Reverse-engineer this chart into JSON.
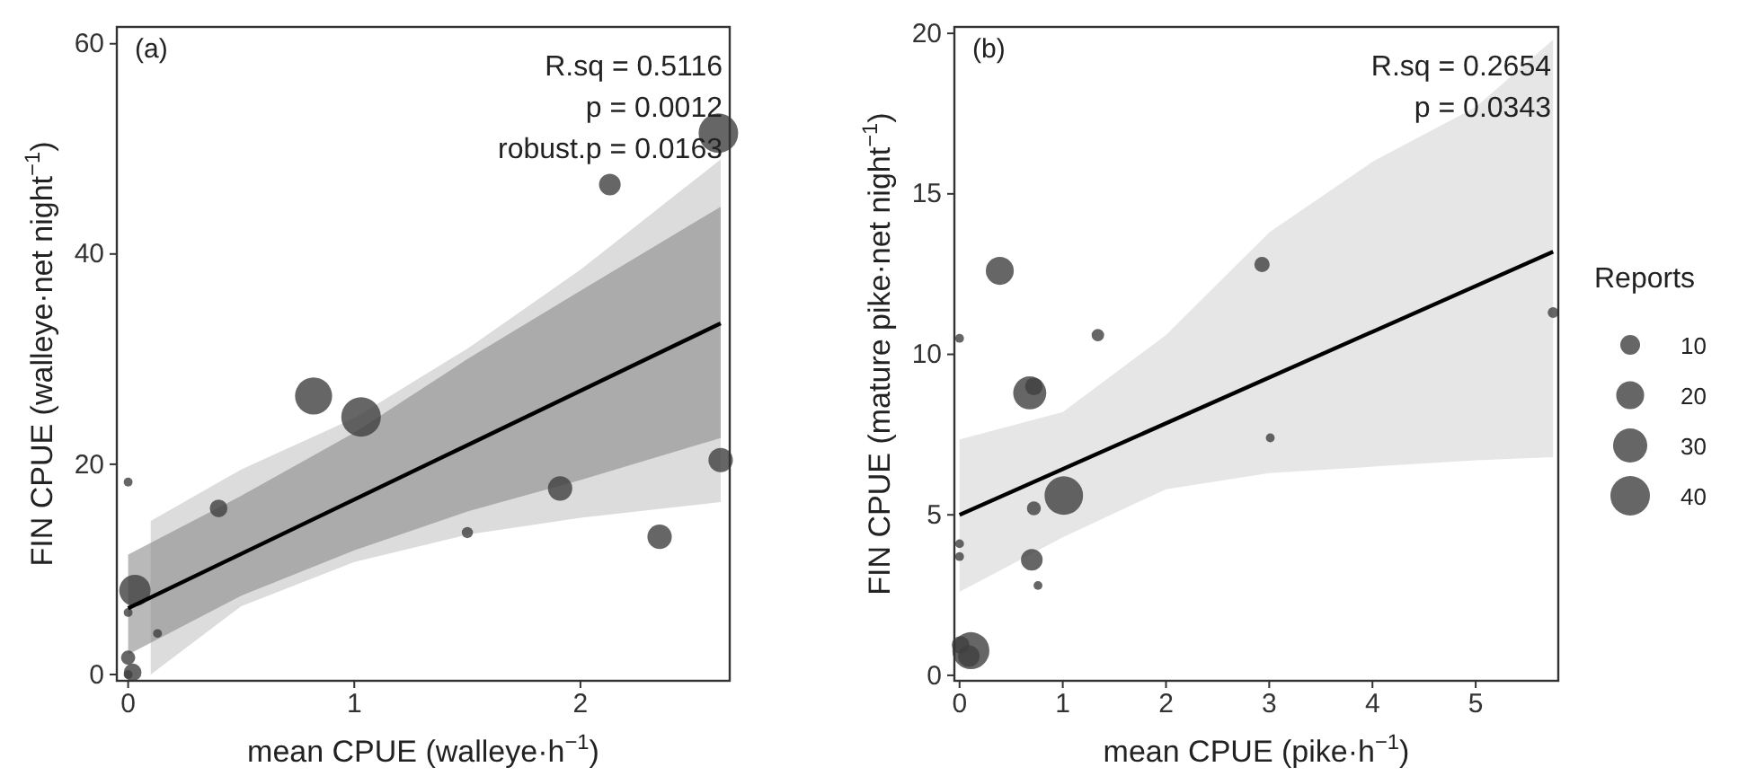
{
  "chart_data": [
    {
      "type": "scatter",
      "xlabel": "mean CPUE (walleye·h$^{−1}$)",
      "ylabel": "FIN CPUE (walleye·net night$^{−1}$)",
      "annotations": [
        "(a)",
        "R.sq = 0.5116",
        "p = 0.0012",
        "robust.p = 0.0163"
      ],
      "xlim": [
        -0.05,
        2.66
      ],
      "ylim": [
        -0.6,
        61.6
      ],
      "xticks": [
        0,
        1,
        2
      ],
      "yticks": [
        0,
        20,
        40,
        60
      ],
      "grid": false,
      "series": [
        {
          "type": "line",
          "color": "#c4c4c4",
          "x": [
            0.1,
            0.5,
            1,
            1.5,
            2,
            2.62
          ],
          "values": [
            null,
            null,
            null,
            null,
            null,
            null
          ],
          "lower": [
            0,
            6.5,
            10.7,
            13.3,
            14.9,
            16.4
          ],
          "upper": [
            14.6,
            19.5,
            24.4,
            31,
            38.5,
            49
          ]
        },
        {
          "type": "line",
          "color": "#8a8a8a",
          "x": [
            0,
            0.5,
            1,
            1.5,
            2,
            2.62
          ],
          "values": [
            null,
            null,
            null,
            null,
            null,
            null
          ],
          "lower": [
            1.9,
            7.5,
            11.8,
            15.5,
            18.5,
            22.5
          ],
          "upper": [
            11.4,
            17,
            23,
            30,
            36.5,
            44.5
          ]
        },
        {
          "marker": "circle",
          "color": "#404040",
          "x": [
            2.61,
            2.13,
            0.82,
            1.03,
            2.62,
            1.91,
            0,
            0.4,
            1.5,
            2.35,
            0.03,
            0,
            0.13,
            0,
            0.02,
            0
          ],
          "values": [
            51.5,
            46.6,
            26.5,
            24.5,
            20.4,
            17.7,
            18.3,
            15.8,
            13.5,
            13.1,
            8,
            5.9,
            3.9,
            1.6,
            0.2,
            0
          ],
          "sizes": [
            1,
            0.3,
            0.88,
            1,
            0.38,
            0.38,
            0.05,
            0.2,
            0.08,
            0.38,
            0.63,
            0.05,
            0.05,
            0.13,
            0.2,
            0.05
          ]
        },
        {
          "type": "line",
          "color": "#000000",
          "x": [
            0,
            2.62
          ],
          "values": [
            6.3,
            33.4
          ]
        }
      ]
    },
    {
      "type": "scatter",
      "xlabel": "mean CPUE (pike·h$^{−1}$)",
      "ylabel": "FIN CPUE (mature pike·net night$^{−1}$)",
      "annotations": [
        "(b)",
        "R.sq = 0.2654",
        "p = 0.0343"
      ],
      "xlim": [
        -0.05,
        5.8
      ],
      "ylim": [
        -0.17,
        20.2
      ],
      "xticks": [
        0,
        1,
        2,
        3,
        4,
        5
      ],
      "yticks": [
        0,
        5,
        10,
        15,
        20
      ],
      "grid": false,
      "legend_title": "Reports",
      "size_legend": [
        10,
        20,
        30,
        40
      ],
      "series": [
        {
          "type": "line",
          "color": "#d6d6d6",
          "x": [
            0,
            1,
            2,
            3,
            4,
            5,
            5.75
          ],
          "values": [
            null,
            null,
            null,
            null,
            null,
            null,
            null
          ],
          "lower": [
            2.6,
            4.3,
            5.8,
            6.3,
            6.5,
            6.7,
            6.8
          ],
          "upper": [
            7.35,
            8.2,
            10.6,
            13.8,
            16,
            17.7,
            19.8
          ]
        },
        {
          "marker": "circle",
          "color": "#404040",
          "x": [
            0.39,
            2.93,
            0,
            1.34,
            0.68,
            0.72,
            3.01,
            1.01,
            0.72,
            0,
            0,
            0.7,
            0.76,
            0.11,
            0.01,
            0.09,
            5.75
          ],
          "values": [
            12.6,
            12.8,
            10.5,
            10.6,
            8.8,
            9,
            7.4,
            5.6,
            5.2,
            4.1,
            3.7,
            3.6,
            2.8,
            0.77,
            0.95,
            0.6,
            11.3
          ],
          "sizes": [
            20,
            6,
            2,
            4,
            28,
            8,
            2,
            38,
            5,
            2,
            2,
            12,
            2,
            35,
            8,
            12,
            3
          ]
        },
        {
          "type": "line",
          "color": "#000000",
          "x": [
            0,
            5.75
          ],
          "values": [
            5,
            13.2
          ]
        }
      ]
    }
  ]
}
